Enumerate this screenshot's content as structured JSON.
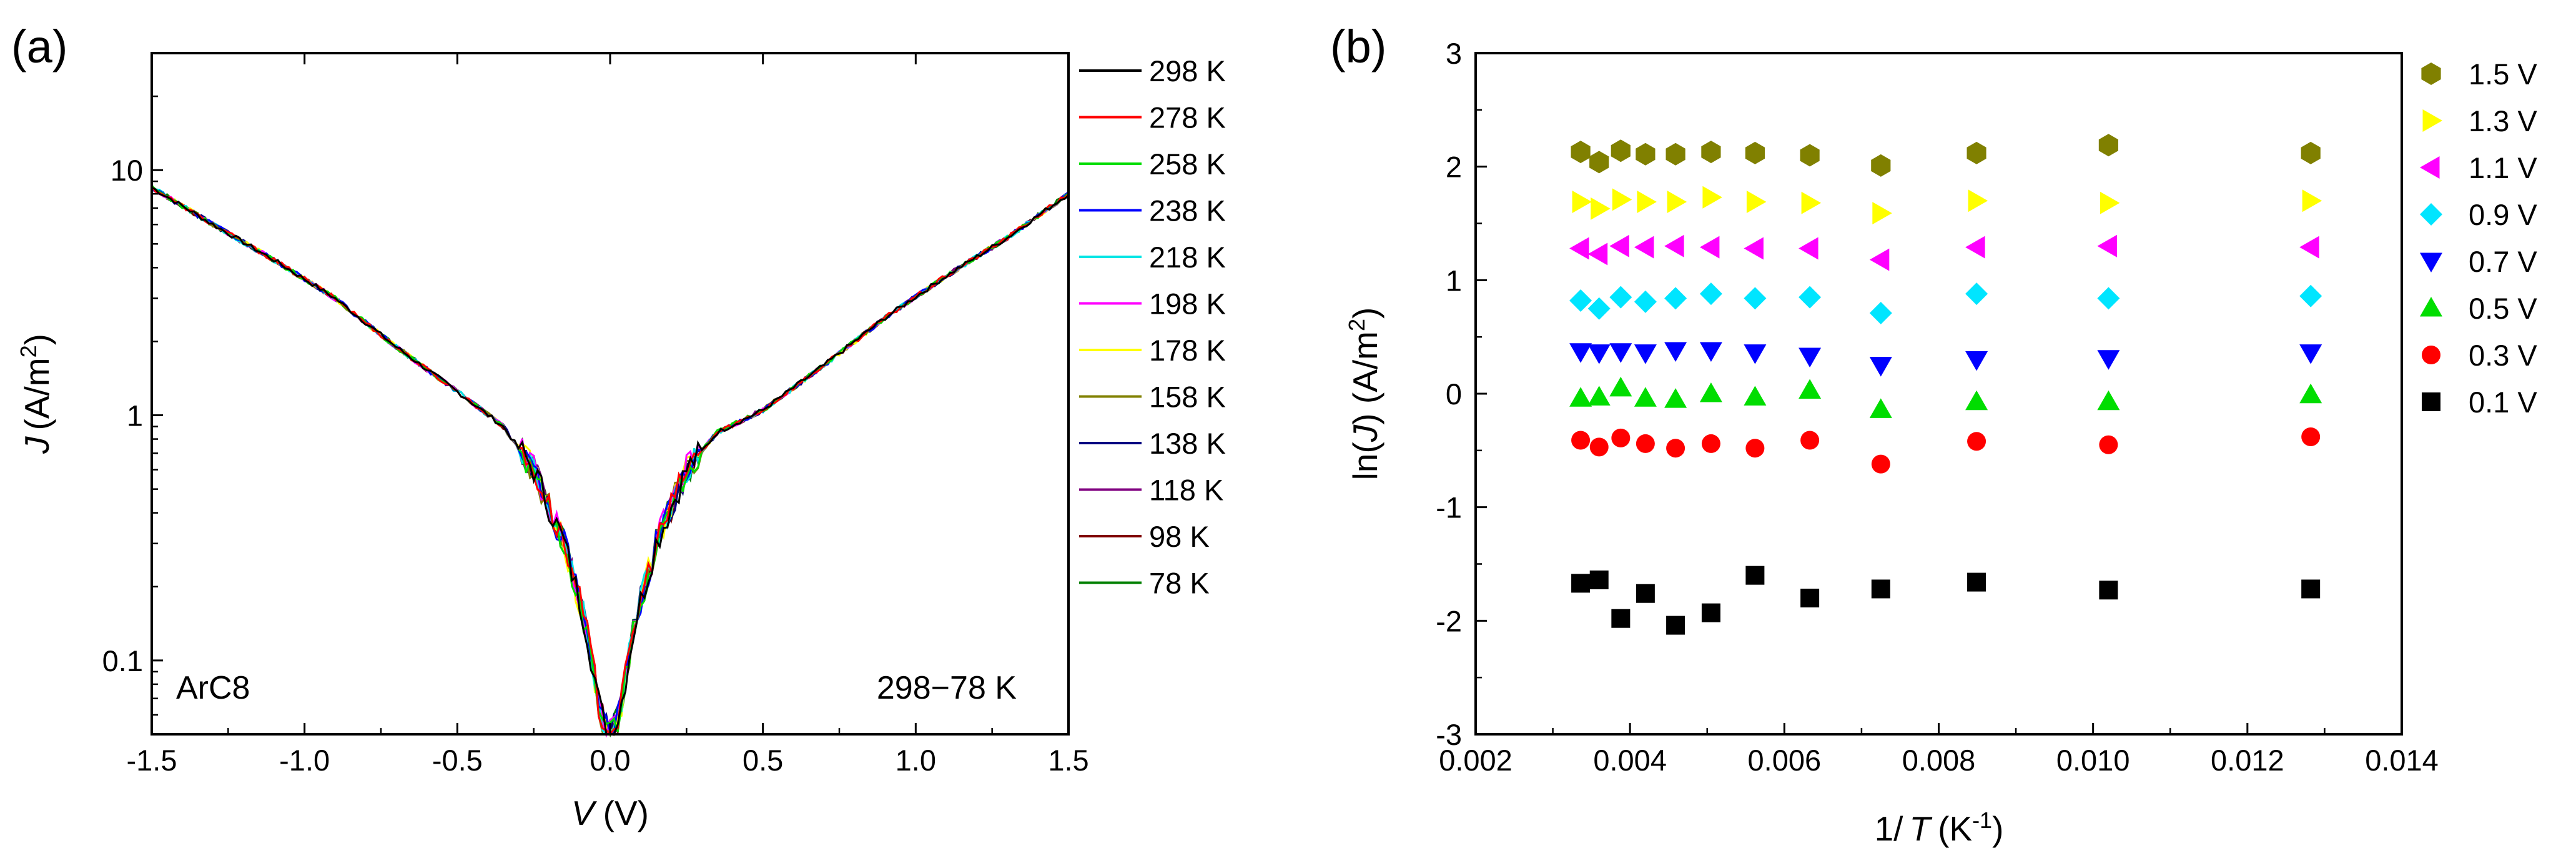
{
  "chart_data": [
    {
      "panel": "(a)",
      "type": "line",
      "xlabel_italic": "V",
      "xlabel_unit": "(V)",
      "ylabel_italic": "J",
      "ylabel_unit": "(A/m",
      "ylabel_sup": "2",
      "ylabel_close": ")",
      "xlim": [
        -1.5,
        1.5
      ],
      "ylim": [
        0.05,
        30
      ],
      "yscale": "log",
      "xticks": [
        -1.5,
        -1.0,
        -0.5,
        0.0,
        0.5,
        1.0,
        1.5
      ],
      "xtick_labels": [
        "-1.5",
        "-1.0",
        "-0.5",
        "0.0",
        "0.5",
        "1.0",
        "1.5"
      ],
      "yticks": [
        0.1,
        1,
        10
      ],
      "ytick_labels": [
        "0.1",
        "1",
        "10"
      ],
      "annotation_left": "ArC8",
      "annotation_right": "298−78  K",
      "legend_position": "outside-right",
      "curve": {
        "x": [
          -1.5,
          -1.3,
          -1.1,
          -0.9,
          -0.7,
          -0.5,
          -0.35,
          -0.25,
          -0.15,
          -0.08,
          -0.03,
          0.0,
          0.03,
          0.08,
          0.15,
          0.25,
          0.35,
          0.5,
          0.7,
          0.9,
          1.1,
          1.3,
          1.5
        ],
        "y": [
          8.5,
          6.0,
          4.3,
          3.0,
          1.9,
          1.25,
          0.9,
          0.6,
          0.3,
          0.14,
          0.06,
          0.05,
          0.06,
          0.14,
          0.3,
          0.6,
          0.85,
          1.05,
          1.6,
          2.5,
          3.7,
          5.3,
          8.0
        ]
      },
      "series": [
        {
          "name": "298 K",
          "color": "#000000"
        },
        {
          "name": "278 K",
          "color": "#ff0000"
        },
        {
          "name": "258 K",
          "color": "#00dd00"
        },
        {
          "name": "238 K",
          "color": "#0000ff"
        },
        {
          "name": "218 K",
          "color": "#00e5e5"
        },
        {
          "name": "198 K",
          "color": "#ff00ff"
        },
        {
          "name": "178 K",
          "color": "#ffff00"
        },
        {
          "name": "158 K",
          "color": "#808000"
        },
        {
          "name": "138 K",
          "color": "#000080"
        },
        {
          "name": "118 K",
          "color": "#800080"
        },
        {
          "name": "98 K",
          "color": "#800000"
        },
        {
          "name": "78 K",
          "color": "#008000"
        }
      ]
    },
    {
      "panel": "(b)",
      "type": "scatter",
      "xlabel_prefix": "1/",
      "xlabel_italic": "T",
      "xlabel_unit": "(K",
      "xlabel_sup": "-1",
      "xlabel_close": ")",
      "ylabel_prefix": "ln(",
      "ylabel_italic": "J",
      "ylabel_unit": ") (A/m",
      "ylabel_sup": "2",
      "ylabel_close": ")",
      "xlim": [
        0.002,
        0.014
      ],
      "ylim": [
        -3,
        3
      ],
      "xticks": [
        0.002,
        0.004,
        0.006,
        0.008,
        0.01,
        0.012,
        0.014
      ],
      "xtick_labels": [
        "0.002",
        "0.004",
        "0.006",
        "0.008",
        "0.010",
        "0.012",
        "0.014"
      ],
      "yticks": [
        -3,
        -2,
        -1,
        0,
        1,
        2,
        3
      ],
      "ytick_labels": [
        "-3",
        "-2",
        "-1",
        "0",
        "1",
        "2",
        "3"
      ],
      "legend_position": "outside-right",
      "x": [
        0.00336,
        0.0036,
        0.00388,
        0.0042,
        0.00459,
        0.00505,
        0.00562,
        0.00633,
        0.00725,
        0.00849,
        0.0102,
        0.01282
      ],
      "series": [
        {
          "name": "1.5 V",
          "marker": "hexagon",
          "color": "#808000",
          "values": [
            2.13,
            2.04,
            2.14,
            2.11,
            2.11,
            2.13,
            2.12,
            2.1,
            2.01,
            2.12,
            2.19,
            2.12
          ]
        },
        {
          "name": "1.3 V",
          "marker": "triangle-right",
          "color": "#ffff00",
          "values": [
            1.69,
            1.63,
            1.71,
            1.69,
            1.69,
            1.73,
            1.69,
            1.68,
            1.59,
            1.7,
            1.68,
            1.7
          ]
        },
        {
          "name": "1.1 V",
          "marker": "triangle-left",
          "color": "#ff00ff",
          "values": [
            1.28,
            1.23,
            1.3,
            1.29,
            1.3,
            1.29,
            1.28,
            1.28,
            1.18,
            1.29,
            1.3,
            1.29
          ]
        },
        {
          "name": "0.9 V",
          "marker": "diamond",
          "color": "#00e5ff",
          "values": [
            0.82,
            0.75,
            0.85,
            0.81,
            0.84,
            0.88,
            0.84,
            0.85,
            0.71,
            0.88,
            0.84,
            0.86
          ]
        },
        {
          "name": "0.7 V",
          "marker": "triangle-down",
          "color": "#0000ff",
          "values": [
            0.37,
            0.36,
            0.37,
            0.36,
            0.38,
            0.38,
            0.36,
            0.33,
            0.25,
            0.3,
            0.31,
            0.36
          ]
        },
        {
          "name": "0.5 V",
          "marker": "triangle-up",
          "color": "#00dd00",
          "values": [
            -0.04,
            -0.03,
            0.05,
            -0.04,
            -0.05,
            0.0,
            -0.03,
            0.03,
            -0.14,
            -0.07,
            -0.07,
            -0.01
          ]
        },
        {
          "name": "0.3 V",
          "marker": "circle",
          "color": "#ff0000",
          "values": [
            -0.41,
            -0.47,
            -0.39,
            -0.44,
            -0.48,
            -0.44,
            -0.48,
            -0.41,
            -0.62,
            -0.42,
            -0.45,
            -0.38
          ]
        },
        {
          "name": "0.1 V",
          "marker": "square",
          "color": "#000000",
          "values": [
            -1.67,
            -1.64,
            -1.98,
            -1.76,
            -2.04,
            -1.93,
            -1.6,
            -1.8,
            -1.72,
            -1.66,
            -1.73,
            -1.72
          ]
        }
      ]
    }
  ]
}
